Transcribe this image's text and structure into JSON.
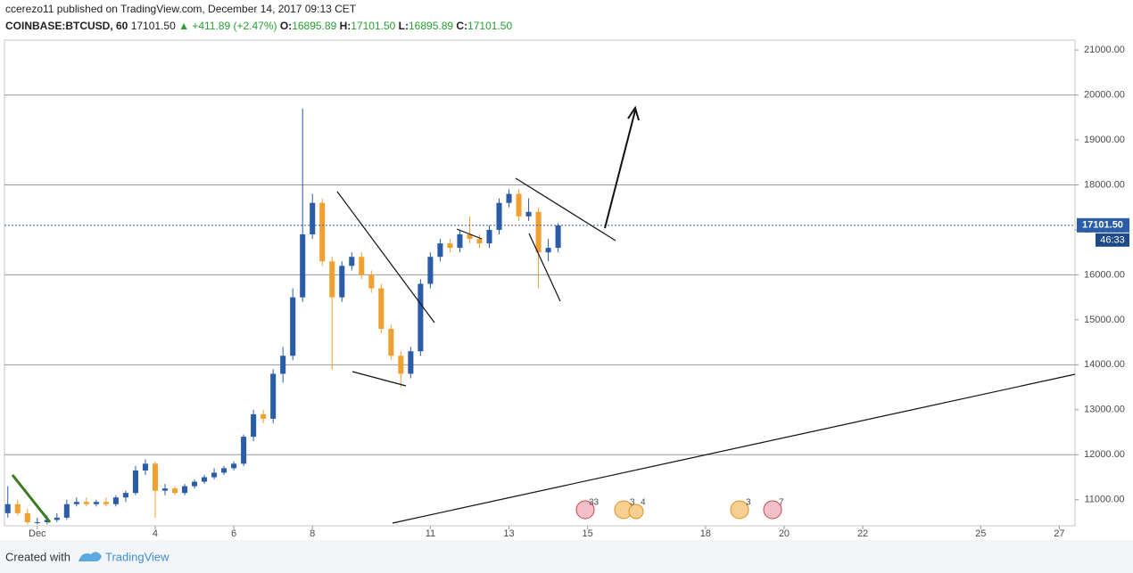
{
  "header": {
    "author_line": "ccerezo11 published on TradingView.com, December 14, 2017 09:13 CET",
    "symbol": "COINBASE:BTCUSD, 60",
    "price": "17101.50",
    "change": "▲ +411.89 (+2.47%)",
    "ohlc": [
      {
        "label": "O:",
        "value": "16895.89"
      },
      {
        "label": "H:",
        "value": "17101.50"
      },
      {
        "label": "L:",
        "value": "16895.89"
      },
      {
        "label": "C:",
        "value": "17101.50"
      }
    ]
  },
  "footer": {
    "created": "Created with",
    "brand": "TradingView"
  },
  "events": [
    "33",
    "3",
    "4",
    "3",
    "7"
  ],
  "chart_data": {
    "type": "candlestick",
    "x": [
      0.25,
      0.5,
      0.75,
      1,
      1.25,
      1.5,
      1.75,
      2,
      2.25,
      2.5,
      2.75,
      3,
      3.25,
      3.5,
      3.75,
      4,
      4.25,
      4.5,
      4.75,
      5,
      5.25,
      5.5,
      5.75,
      6,
      6.25,
      6.5,
      6.75,
      7,
      7.25,
      7.5,
      7.75,
      8,
      8.25,
      8.5,
      8.75,
      9,
      9.25,
      9.5,
      9.75,
      10,
      10.25,
      10.5,
      10.75,
      11,
      11.25,
      11.5,
      11.75,
      12,
      12.25,
      12.5,
      12.75,
      13,
      13.25,
      13.5,
      13.75,
      14,
      14.25
    ],
    "open": [
      10700,
      10900,
      10700,
      10500,
      10500,
      10550,
      10600,
      10900,
      10950,
      10900,
      10950,
      10900,
      11050,
      11150,
      11650,
      11800,
      11200,
      11250,
      11150,
      11300,
      11400,
      11500,
      11600,
      11700,
      11800,
      12400,
      12900,
      12800,
      13800,
      14200,
      15500,
      16900,
      17600,
      16300,
      15500,
      16200,
      16400,
      16000,
      15700,
      14800,
      14200,
      13800,
      14300,
      15800,
      16400,
      16700,
      16600,
      16900,
      16800,
      16700,
      17000,
      17600,
      17800,
      17300,
      17400,
      16500,
      16600
    ],
    "high": [
      11300,
      11000,
      10800,
      10600,
      10650,
      10700,
      11000,
      11050,
      11050,
      11000,
      11050,
      11100,
      11200,
      11750,
      11900,
      11850,
      11350,
      11300,
      11350,
      11450,
      11550,
      11700,
      11750,
      11850,
      12450,
      13000,
      13000,
      13900,
      14400,
      15700,
      19700,
      17800,
      17700,
      16400,
      16300,
      16500,
      16500,
      16100,
      15800,
      14900,
      14300,
      14400,
      15900,
      16500,
      16800,
      16800,
      17000,
      17300,
      16900,
      17100,
      17700,
      17900,
      17900,
      17700,
      17500,
      16800,
      17150
    ],
    "low": [
      10600,
      10650,
      10450,
      10450,
      10450,
      10500,
      10550,
      10850,
      10850,
      10850,
      10850,
      10850,
      10950,
      11100,
      11550,
      10600,
      11100,
      11100,
      11100,
      11250,
      11350,
      11450,
      11550,
      11650,
      11750,
      12300,
      12700,
      12700,
      13600,
      14100,
      15400,
      16800,
      16200,
      13900,
      15400,
      16100,
      15900,
      15600,
      14700,
      14100,
      13500,
      13700,
      14200,
      15700,
      16300,
      16500,
      16500,
      16700,
      16600,
      16600,
      16900,
      17500,
      17200,
      17200,
      15700,
      16300,
      16500
    ],
    "close": [
      10900,
      10700,
      10500,
      10500,
      10550,
      10600,
      10900,
      10950,
      10900,
      10950,
      10900,
      11050,
      11150,
      11650,
      11800,
      11200,
      11250,
      11150,
      11300,
      11400,
      11500,
      11600,
      11700,
      11800,
      12400,
      12900,
      12800,
      13800,
      14200,
      15500,
      16900,
      17600,
      16300,
      15500,
      16200,
      16400,
      16000,
      15700,
      14800,
      14200,
      13800,
      14300,
      15800,
      16400,
      16700,
      16600,
      16900,
      16800,
      16700,
      17000,
      17600,
      17800,
      17300,
      17400,
      16500,
      16600,
      17100
    ],
    "up_color": "#2a5ca8",
    "down_color": "#f0a030",
    "xlim": [
      0.165,
      27.4
    ],
    "xticks": [
      {
        "value": 1,
        "label": "Dec"
      },
      4,
      6,
      8,
      11,
      13,
      15,
      18,
      20,
      22,
      25,
      27
    ],
    "ylim": [
      10420,
      21220
    ],
    "yticks": [
      {
        "value": 11000,
        "label": "11000.00"
      },
      {
        "value": 12000,
        "label": "12000.00"
      },
      {
        "value": 13000,
        "label": "13000.00"
      },
      {
        "value": 14000,
        "label": "14000.00"
      },
      {
        "value": 15000,
        "label": "15000.00"
      },
      {
        "value": 16000,
        "label": "16000.00"
      },
      {
        "value": 17000,
        "label": "17000.00"
      },
      {
        "value": 18000,
        "label": "18000.00"
      },
      {
        "value": 19000,
        "label": "19000.00"
      },
      {
        "value": 20000,
        "label": "20000.00"
      },
      {
        "value": 21000,
        "label": "21000.00"
      }
    ],
    "levels": [
      12000,
      14000,
      16000,
      18000,
      20000
    ],
    "price_line": {
      "value": 17101.5,
      "label": "17101.50"
    },
    "countdown": "46:33"
  }
}
